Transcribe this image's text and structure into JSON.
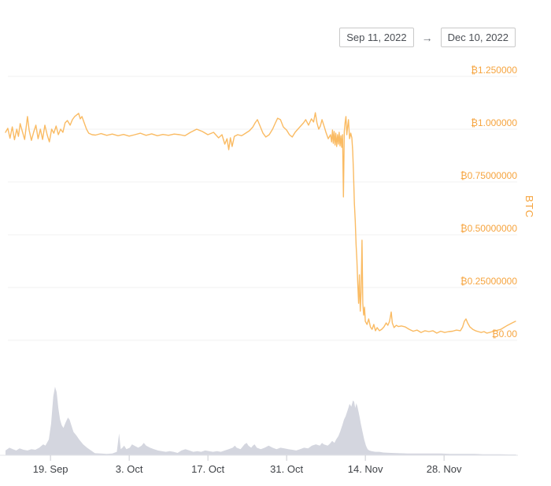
{
  "date_range": {
    "start": "Sep 11, 2022",
    "end": "Dec 10, 2022",
    "separator": "→"
  },
  "colors": {
    "accent_orange": "#f6a43e",
    "line_orange": "#fabb63",
    "volume_gray": "#d4d6df",
    "gridline": "#f0f0f2",
    "axis_line": "#e3e4e8",
    "tick": "#c9cbd1",
    "x_label": "#3f4247"
  },
  "chart_data": {
    "type": "line",
    "title": "",
    "xlabel": "",
    "ylabel": "BTC",
    "grid": true,
    "legend": false,
    "y_axis": {
      "label": "BTC",
      "range": [
        0,
        1.25
      ],
      "ticks": [
        {
          "value": 1.25,
          "label": "₿1.250000"
        },
        {
          "value": 1.0,
          "label": "₿1.000000"
        },
        {
          "value": 0.75,
          "label": "₿0.75000000"
        },
        {
          "value": 0.5,
          "label": "₿0.50000000"
        },
        {
          "value": 0.25,
          "label": "₿0.25000000"
        },
        {
          "value": 0.0,
          "label": "₿0.00"
        }
      ]
    },
    "x_axis": {
      "start_date": "Sep 11, 2022",
      "end_date": "Dec 10, 2022",
      "range_days": [
        0,
        91
      ],
      "ticks": [
        {
          "day": 8,
          "label": "19. Sep"
        },
        {
          "day": 22,
          "label": "3. Oct"
        },
        {
          "day": 36,
          "label": "17. Oct"
        },
        {
          "day": 50,
          "label": "31. Oct"
        },
        {
          "day": 64,
          "label": "14. Nov"
        },
        {
          "day": 78,
          "label": "28. Nov"
        }
      ]
    },
    "price_btc": [
      [
        0,
        0.985
      ],
      [
        0.4,
        1.004
      ],
      [
        0.8,
        0.957
      ],
      [
        1.2,
        1.011
      ],
      [
        1.6,
        0.95
      ],
      [
        2,
        1.0
      ],
      [
        2.3,
        0.966
      ],
      [
        2.6,
        1.026
      ],
      [
        3,
        0.989
      ],
      [
        3.4,
        0.951
      ],
      [
        3.9,
        1.06
      ],
      [
        4.2,
        0.996
      ],
      [
        4.6,
        0.947
      ],
      [
        5,
        0.985
      ],
      [
        5.4,
        1.019
      ],
      [
        5.8,
        0.955
      ],
      [
        6.2,
        1.0
      ],
      [
        6.6,
        0.951
      ],
      [
        7,
        1.019
      ],
      [
        7.4,
        0.974
      ],
      [
        7.8,
        0.94
      ],
      [
        8.2,
        1.0
      ],
      [
        8.6,
        0.981
      ],
      [
        9,
        1.015
      ],
      [
        9.4,
        0.974
      ],
      [
        9.8,
        1.0
      ],
      [
        10.2,
        0.985
      ],
      [
        10.6,
        1.03
      ],
      [
        11,
        1.041
      ],
      [
        11.5,
        1.019
      ],
      [
        11.9,
        1.045
      ],
      [
        12.3,
        1.06
      ],
      [
        13,
        1.075
      ],
      [
        13.3,
        1.049
      ],
      [
        13.6,
        1.06
      ],
      [
        14,
        1.03
      ],
      [
        14.4,
        1.0
      ],
      [
        14.8,
        0.981
      ],
      [
        15.4,
        0.974
      ],
      [
        16,
        0.972
      ],
      [
        17,
        0.979
      ],
      [
        18,
        0.971
      ],
      [
        19,
        0.977
      ],
      [
        20,
        0.969
      ],
      [
        21,
        0.975
      ],
      [
        22,
        0.967
      ],
      [
        23,
        0.974
      ],
      [
        24,
        0.981
      ],
      [
        25,
        0.971
      ],
      [
        26,
        0.978
      ],
      [
        27,
        0.969
      ],
      [
        28,
        0.975
      ],
      [
        29,
        0.971
      ],
      [
        30,
        0.977
      ],
      [
        31,
        0.974
      ],
      [
        31.9,
        0.969
      ],
      [
        32.9,
        0.985
      ],
      [
        34,
        1.0
      ],
      [
        35,
        0.989
      ],
      [
        36,
        0.974
      ],
      [
        37,
        0.985
      ],
      [
        37.9,
        0.959
      ],
      [
        38.5,
        0.974
      ],
      [
        39,
        0.929
      ],
      [
        39.4,
        0.955
      ],
      [
        39.7,
        0.903
      ],
      [
        40,
        0.959
      ],
      [
        40.3,
        0.918
      ],
      [
        40.7,
        0.966
      ],
      [
        41.3,
        0.974
      ],
      [
        42,
        0.969
      ],
      [
        42.7,
        0.981
      ],
      [
        43.4,
        0.993
      ],
      [
        44,
        1.011
      ],
      [
        44.4,
        1.03
      ],
      [
        44.8,
        1.045
      ],
      [
        45.2,
        1.019
      ],
      [
        45.8,
        0.981
      ],
      [
        46.3,
        0.963
      ],
      [
        46.9,
        0.974
      ],
      [
        47.5,
        1.0
      ],
      [
        48,
        1.03
      ],
      [
        48.4,
        1.052
      ],
      [
        48.9,
        1.045
      ],
      [
        49.4,
        1.011
      ],
      [
        50,
        0.996
      ],
      [
        50.5,
        0.974
      ],
      [
        51,
        0.963
      ],
      [
        51.5,
        0.985
      ],
      [
        52,
        1.0
      ],
      [
        52.5,
        1.015
      ],
      [
        53,
        1.03
      ],
      [
        53.4,
        1.045
      ],
      [
        53.9,
        1.019
      ],
      [
        54.4,
        1.049
      ],
      [
        54.8,
        1.034
      ],
      [
        55.1,
        1.078
      ],
      [
        55.4,
        1.03
      ],
      [
        55.7,
        1.0
      ],
      [
        56,
        1.015
      ],
      [
        56.3,
        1.045
      ],
      [
        56.7,
        1.011
      ],
      [
        57,
        0.985
      ],
      [
        57.4,
        0.955
      ],
      [
        57.8,
        0.974
      ],
      [
        58,
        0.94
      ],
      [
        58.15,
        0.996
      ],
      [
        58.3,
        0.933
      ],
      [
        58.45,
        0.989
      ],
      [
        58.6,
        0.925
      ],
      [
        58.75,
        0.981
      ],
      [
        58.9,
        0.918
      ],
      [
        59.05,
        0.974
      ],
      [
        59.2,
        0.929
      ],
      [
        59.35,
        0.985
      ],
      [
        59.5,
        0.921
      ],
      [
        59.65,
        0.969
      ],
      [
        59.8,
        0.914
      ],
      [
        59.95,
        0.974
      ],
      [
        60.1,
        0.679
      ],
      [
        60.25,
        0.989
      ],
      [
        60.4,
        1.03
      ],
      [
        60.55,
        1.06
      ],
      [
        60.7,
        0.974
      ],
      [
        60.85,
        1.011
      ],
      [
        61,
        1.045
      ],
      [
        61.2,
        0.955
      ],
      [
        61.4,
        0.981
      ],
      [
        61.6,
        0.959
      ],
      [
        61.75,
        0.895
      ],
      [
        61.9,
        0.791
      ],
      [
        62.05,
        0.649
      ],
      [
        62.2,
        0.567
      ],
      [
        62.35,
        0.451
      ],
      [
        62.5,
        0.381
      ],
      [
        62.65,
        0.269
      ],
      [
        62.8,
        0.175
      ],
      [
        62.95,
        0.31
      ],
      [
        63.1,
        0.138
      ],
      [
        63.25,
        0.231
      ],
      [
        63.4,
        0.474
      ],
      [
        63.55,
        0.175
      ],
      [
        63.7,
        0.119
      ],
      [
        63.85,
        0.157
      ],
      [
        64,
        0.09
      ],
      [
        64.3,
        0.075
      ],
      [
        64.6,
        0.101
      ],
      [
        64.9,
        0.063
      ],
      [
        65.2,
        0.052
      ],
      [
        65.5,
        0.075
      ],
      [
        65.8,
        0.045
      ],
      [
        66.1,
        0.06
      ],
      [
        66.5,
        0.045
      ],
      [
        66.9,
        0.052
      ],
      [
        67.3,
        0.063
      ],
      [
        67.7,
        0.082
      ],
      [
        68,
        0.071
      ],
      [
        68.3,
        0.09
      ],
      [
        68.6,
        0.134
      ],
      [
        68.8,
        0.082
      ],
      [
        69.1,
        0.06
      ],
      [
        69.5,
        0.071
      ],
      [
        69.9,
        0.065
      ],
      [
        70.4,
        0.068
      ],
      [
        71.1,
        0.063
      ],
      [
        71.8,
        0.052
      ],
      [
        72.5,
        0.043
      ],
      [
        73.2,
        0.048
      ],
      [
        73.9,
        0.037
      ],
      [
        74.6,
        0.045
      ],
      [
        75.3,
        0.041
      ],
      [
        76,
        0.045
      ],
      [
        76.7,
        0.034
      ],
      [
        77.4,
        0.043
      ],
      [
        78.1,
        0.037
      ],
      [
        78.8,
        0.041
      ],
      [
        79.5,
        0.043
      ],
      [
        80.2,
        0.048
      ],
      [
        80.9,
        0.045
      ],
      [
        81.3,
        0.063
      ],
      [
        81.6,
        0.09
      ],
      [
        81.9,
        0.101
      ],
      [
        82.2,
        0.082
      ],
      [
        82.6,
        0.063
      ],
      [
        83.1,
        0.052
      ],
      [
        83.6,
        0.045
      ],
      [
        84.1,
        0.041
      ],
      [
        84.6,
        0.037
      ],
      [
        85.1,
        0.041
      ],
      [
        85.6,
        0.034
      ],
      [
        86.1,
        0.037
      ],
      [
        86.6,
        0.041
      ],
      [
        87.1,
        0.045
      ],
      [
        87.6,
        0.048
      ],
      [
        88.1,
        0.052
      ],
      [
        88.6,
        0.06
      ],
      [
        89.1,
        0.068
      ],
      [
        89.6,
        0.075
      ],
      [
        90.1,
        0.082
      ],
      [
        90.7,
        0.09
      ]
    ],
    "volume_relative": [
      [
        0,
        0.07
      ],
      [
        0.7,
        0.11
      ],
      [
        1.3,
        0.09
      ],
      [
        1.9,
        0.07
      ],
      [
        2.5,
        0.1
      ],
      [
        3.2,
        0.08
      ],
      [
        3.9,
        0.07
      ],
      [
        4.6,
        0.09
      ],
      [
        5.3,
        0.08
      ],
      [
        6,
        0.11
      ],
      [
        6.7,
        0.16
      ],
      [
        7.1,
        0.14
      ],
      [
        7.7,
        0.23
      ],
      [
        8.1,
        0.46
      ],
      [
        8.5,
        0.86
      ],
      [
        8.8,
        1.0
      ],
      [
        9.1,
        0.92
      ],
      [
        9.4,
        0.69
      ],
      [
        9.7,
        0.52
      ],
      [
        10,
        0.44
      ],
      [
        10.3,
        0.4
      ],
      [
        10.7,
        0.48
      ],
      [
        11.1,
        0.55
      ],
      [
        11.4,
        0.52
      ],
      [
        11.7,
        0.44
      ],
      [
        12.1,
        0.34
      ],
      [
        12.6,
        0.29
      ],
      [
        13.1,
        0.23
      ],
      [
        13.8,
        0.16
      ],
      [
        14.5,
        0.11
      ],
      [
        15.2,
        0.07
      ],
      [
        15.9,
        0.03
      ],
      [
        17,
        0.025
      ],
      [
        18,
        0.02
      ],
      [
        19,
        0.025
      ],
      [
        19.8,
        0.05
      ],
      [
        20.2,
        0.32
      ],
      [
        20.5,
        0.09
      ],
      [
        20.8,
        0.11
      ],
      [
        21.1,
        0.14
      ],
      [
        21.5,
        0.09
      ],
      [
        22.1,
        0.11
      ],
      [
        22.5,
        0.16
      ],
      [
        22.9,
        0.14
      ],
      [
        23.6,
        0.11
      ],
      [
        24.2,
        0.14
      ],
      [
        24.6,
        0.18
      ],
      [
        25,
        0.14
      ],
      [
        25.7,
        0.11
      ],
      [
        26.4,
        0.09
      ],
      [
        27.1,
        0.07
      ],
      [
        27.8,
        0.06
      ],
      [
        28.5,
        0.05
      ],
      [
        29.2,
        0.06
      ],
      [
        29.9,
        0.05
      ],
      [
        30.6,
        0.035
      ],
      [
        31.3,
        0.07
      ],
      [
        32,
        0.09
      ],
      [
        32.7,
        0.07
      ],
      [
        33.4,
        0.05
      ],
      [
        34.1,
        0.06
      ],
      [
        34.8,
        0.05
      ],
      [
        35.5,
        0.07
      ],
      [
        36.2,
        0.06
      ],
      [
        36.9,
        0.05
      ],
      [
        37.6,
        0.06
      ],
      [
        38.3,
        0.05
      ],
      [
        39,
        0.07
      ],
      [
        39.7,
        0.09
      ],
      [
        40.4,
        0.11
      ],
      [
        40.8,
        0.14
      ],
      [
        41.1,
        0.11
      ],
      [
        41.8,
        0.09
      ],
      [
        42.5,
        0.16
      ],
      [
        42.9,
        0.18
      ],
      [
        43.2,
        0.14
      ],
      [
        43.7,
        0.11
      ],
      [
        44,
        0.14
      ],
      [
        44.3,
        0.16
      ],
      [
        44.7,
        0.11
      ],
      [
        45.4,
        0.09
      ],
      [
        46.1,
        0.11
      ],
      [
        46.8,
        0.14
      ],
      [
        47.5,
        0.11
      ],
      [
        48.2,
        0.09
      ],
      [
        48.9,
        0.11
      ],
      [
        49.6,
        0.1
      ],
      [
        50.3,
        0.09
      ],
      [
        51,
        0.08
      ],
      [
        51.7,
        0.07
      ],
      [
        52.4,
        0.09
      ],
      [
        53.1,
        0.11
      ],
      [
        53.8,
        0.1
      ],
      [
        54.5,
        0.14
      ],
      [
        55.2,
        0.16
      ],
      [
        55.9,
        0.14
      ],
      [
        56.3,
        0.18
      ],
      [
        56.6,
        0.16
      ],
      [
        57.3,
        0.14
      ],
      [
        57.7,
        0.17
      ],
      [
        58.1,
        0.21
      ],
      [
        58.5,
        0.18
      ],
      [
        58.8,
        0.23
      ],
      [
        59.2,
        0.28
      ],
      [
        59.5,
        0.34
      ],
      [
        59.9,
        0.44
      ],
      [
        60.2,
        0.52
      ],
      [
        60.5,
        0.57
      ],
      [
        60.9,
        0.67
      ],
      [
        61.2,
        0.75
      ],
      [
        61.5,
        0.71
      ],
      [
        61.8,
        0.8
      ],
      [
        62,
        0.78
      ],
      [
        62.2,
        0.69
      ],
      [
        62.4,
        0.76
      ],
      [
        62.6,
        0.71
      ],
      [
        62.8,
        0.63
      ],
      [
        63,
        0.55
      ],
      [
        63.2,
        0.46
      ],
      [
        63.5,
        0.34
      ],
      [
        63.8,
        0.23
      ],
      [
        64.1,
        0.14
      ],
      [
        64.4,
        0.09
      ],
      [
        64.7,
        0.07
      ],
      [
        65.1,
        0.06
      ],
      [
        65.8,
        0.05
      ],
      [
        66.5,
        0.05
      ],
      [
        67.2,
        0.04
      ],
      [
        68.6,
        0.035
      ],
      [
        70,
        0.03
      ],
      [
        71.5,
        0.025
      ],
      [
        73,
        0.025
      ],
      [
        74.5,
        0.025
      ],
      [
        76,
        0.025
      ],
      [
        77.5,
        0.025
      ],
      [
        79,
        0.02
      ],
      [
        80.5,
        0.02
      ],
      [
        82,
        0.02
      ],
      [
        83.5,
        0.02
      ],
      [
        85,
        0.015
      ],
      [
        86.5,
        0.015
      ],
      [
        88,
        0.015
      ],
      [
        89.5,
        0.012
      ],
      [
        90.8,
        0.012
      ]
    ]
  }
}
